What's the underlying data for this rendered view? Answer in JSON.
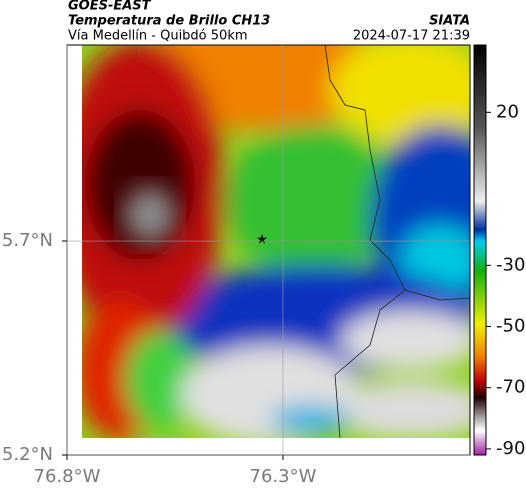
{
  "header": {
    "title": "GOES-EAST",
    "subtitle": "Temperatura de Brillo CH13",
    "location": "Vía Medellín - Quibdó 50km",
    "source": "SIATA",
    "timestamp": "2024-07-17 21:39"
  },
  "map": {
    "xlim": [
      -76.8,
      -75.867
    ],
    "ylim": [
      5.2,
      6.158
    ],
    "xticks": [
      {
        "value": -76.8,
        "label": "76.8°W"
      },
      {
        "value": -76.3,
        "label": "76.3°W"
      }
    ],
    "yticks": [
      {
        "value": 5.2,
        "label": "5.2°N"
      },
      {
        "value": 5.7,
        "label": "5.7°N"
      }
    ]
  },
  "colorbar": {
    "lim": [
      -92,
      42
    ],
    "ticks": [
      20,
      -30,
      -50,
      -70,
      -90
    ]
  }
}
